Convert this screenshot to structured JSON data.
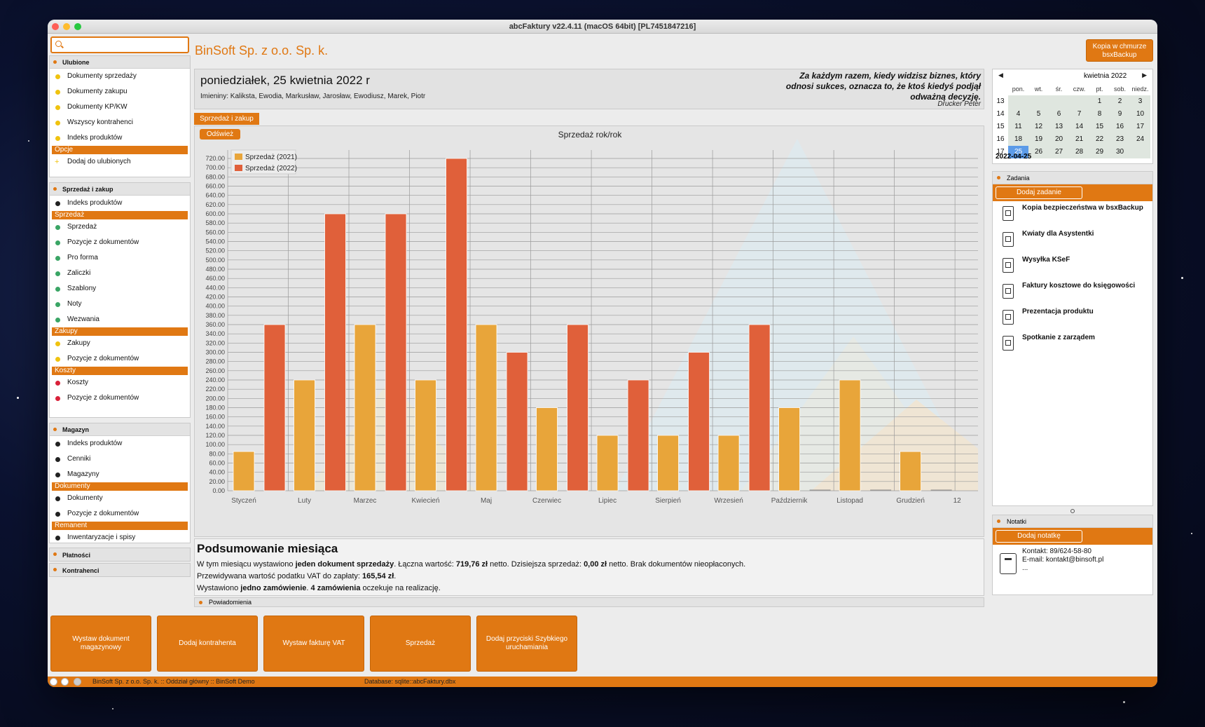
{
  "window": {
    "title": "abcFaktury v22.4.11 (macOS 64bit) [PL7451847216]"
  },
  "header": {
    "brand": "BinSoft Sp. z o.o. Sp. k.",
    "cloud_button": [
      "Kopia w chmurze",
      "bsxBackup"
    ]
  },
  "search": {
    "placeholder": ""
  },
  "sidebar": {
    "favorites": {
      "title": "Ulubione",
      "items": [
        "Dokumenty sprzedaży",
        "Dokumenty zakupu",
        "Dokumenty KP/KW",
        "Wszyscy kontrahenci",
        "Indeks produktów"
      ],
      "options_label": "Opcje",
      "add_item": "Dodaj do ulubionych"
    },
    "sales": {
      "title": "Sprzedaż i zakup",
      "top_item": "Indeks produktów",
      "sections": [
        {
          "label": "Sprzedaż",
          "items": [
            "Sprzedaż",
            "Pozycje z dokumentów",
            "Pro forma",
            "Zaliczki",
            "Szablony",
            "Noty",
            "Wezwania"
          ],
          "color": "#3aa565"
        },
        {
          "label": "Zakupy",
          "items": [
            "Zakupy",
            "Pozycje z dokumentów"
          ],
          "color": "#f0c30f"
        },
        {
          "label": "Koszty",
          "items": [
            "Koszty",
            "Pozycje z dokumentów"
          ],
          "color": "#d9213a"
        }
      ]
    },
    "warehouse": {
      "title": "Magazyn",
      "items": [
        "Indeks produktów",
        "Cenniki",
        "Magazyny"
      ],
      "documents_label": "Dokumenty",
      "documents": [
        "Dokumenty",
        "Pozycje z dokumentów"
      ],
      "remanent_label": "Remanent",
      "remanent": [
        "Inwentaryzacje i spisy"
      ]
    },
    "payments": "Płatności",
    "contractors": "Kontrahenci"
  },
  "dateband": {
    "date": "poniedziałek, 25 kwietnia 2022 r",
    "namedays": "Imieniny: Kaliksta, Ewodia, Markusław, Jarosław, Ewodiusz, Marek, Piotr",
    "quote": [
      "Za każdym razem, kiedy widzisz biznes, który",
      "odnosi sukces, oznacza to, że ktoś kiedyś podjął",
      "odważną decyzję."
    ],
    "quote_author": "Drucker Peter"
  },
  "tab": "Sprzedaż i zakup",
  "refresh_button": "Odśwież",
  "chart_data": {
    "type": "bar",
    "title": "Sprzedaż rok/rok",
    "categories": [
      "Styczeń",
      "Luty",
      "Marzec",
      "Kwiecień",
      "Maj",
      "Czerwiec",
      "Lipiec",
      "Sierpień",
      "Wrzesień",
      "Październik",
      "Listopad",
      "Grudzień",
      "12"
    ],
    "series": [
      {
        "name": "Sprzedaż (2021)",
        "color": "#e8a53a",
        "values": [
          85,
          240,
          360,
          240,
          360,
          180,
          120,
          120,
          120,
          180,
          240,
          85,
          0
        ]
      },
      {
        "name": "Sprzedaż (2022)",
        "color": "#e0603a",
        "values": [
          360,
          600,
          600,
          720,
          300,
          360,
          240,
          300,
          360,
          0,
          0,
          0,
          0
        ]
      }
    ],
    "ylim": [
      0,
      720
    ],
    "ytick_step": 20,
    "legend": "top-left",
    "grid": true
  },
  "summary": {
    "title": "Podsumowanie miesiąca",
    "line1": [
      "W tym miesiącu wystawiono ",
      "jeden dokument sprzedaży",
      ". Łączna wartość: ",
      "719,76 zł",
      " netto. Dzisiejsza sprzedaż: ",
      "0,00 zł",
      " netto. Brak dokumentów nieopłaconych."
    ],
    "line2": [
      "Przewidywana wartość podatku VAT do zapłaty: ",
      "165,54 zł",
      "."
    ],
    "line3": [
      "Wystawiono ",
      "jedno zamówienie",
      ". ",
      "4 zamówienia",
      " oczekuje na realizację."
    ]
  },
  "notifications": "Powiadomienia",
  "calendar": {
    "prev": "◀",
    "next": "▶",
    "month": "kwietnia  2022",
    "weekdays": [
      "pon.",
      "wt.",
      "śr.",
      "czw.",
      "pt.",
      "sob.",
      "niedz."
    ],
    "weeks": [
      {
        "wk": "13",
        "days": [
          "",
          "",
          "",
          "",
          "1",
          "2",
          "3"
        ]
      },
      {
        "wk": "14",
        "days": [
          "4",
          "5",
          "6",
          "7",
          "8",
          "9",
          "10"
        ]
      },
      {
        "wk": "15",
        "days": [
          "11",
          "12",
          "13",
          "14",
          "15",
          "16",
          "17"
        ]
      },
      {
        "wk": "16",
        "days": [
          "18",
          "19",
          "20",
          "21",
          "22",
          "23",
          "24"
        ]
      },
      {
        "wk": "17",
        "days": [
          "25",
          "26",
          "27",
          "28",
          "29",
          "30",
          ""
        ]
      }
    ],
    "today": "25",
    "selected_date": "2022-04-25"
  },
  "tasks": {
    "title": "Zadania",
    "add_button": "Dodaj zadanie",
    "items": [
      "Kopia bezpieczeństwa w bsxBackup",
      "Kwiaty dla Asystentki",
      "Wysyłka KSeF",
      "Faktury kosztowe do księgowości",
      "Prezentacja produktu",
      "Spotkanie z zarządem"
    ]
  },
  "notes": {
    "title": "Notatki",
    "add_button": "Dodaj notatkę",
    "lines": [
      "Kontakt: 89/624-58-80",
      "E-mail: kontakt@binsoft.pl",
      "..."
    ]
  },
  "launcher": [
    "Wystaw dokument magazynowy",
    "Dodaj kontrahenta",
    "Wystaw fakturę VAT",
    "Sprzedaż",
    "Dodaj przyciski Szybkiego uruchamiania"
  ],
  "statusbar": {
    "company": "BinSoft Sp. z o.o. Sp. k. :: Oddział główny :: BinSoft Demo",
    "database": "Database: sqlite::abcFaktury.dbx"
  },
  "colors": {
    "accent": "#e07813",
    "series2021": "#e8a53a",
    "series2022": "#e0603a"
  }
}
